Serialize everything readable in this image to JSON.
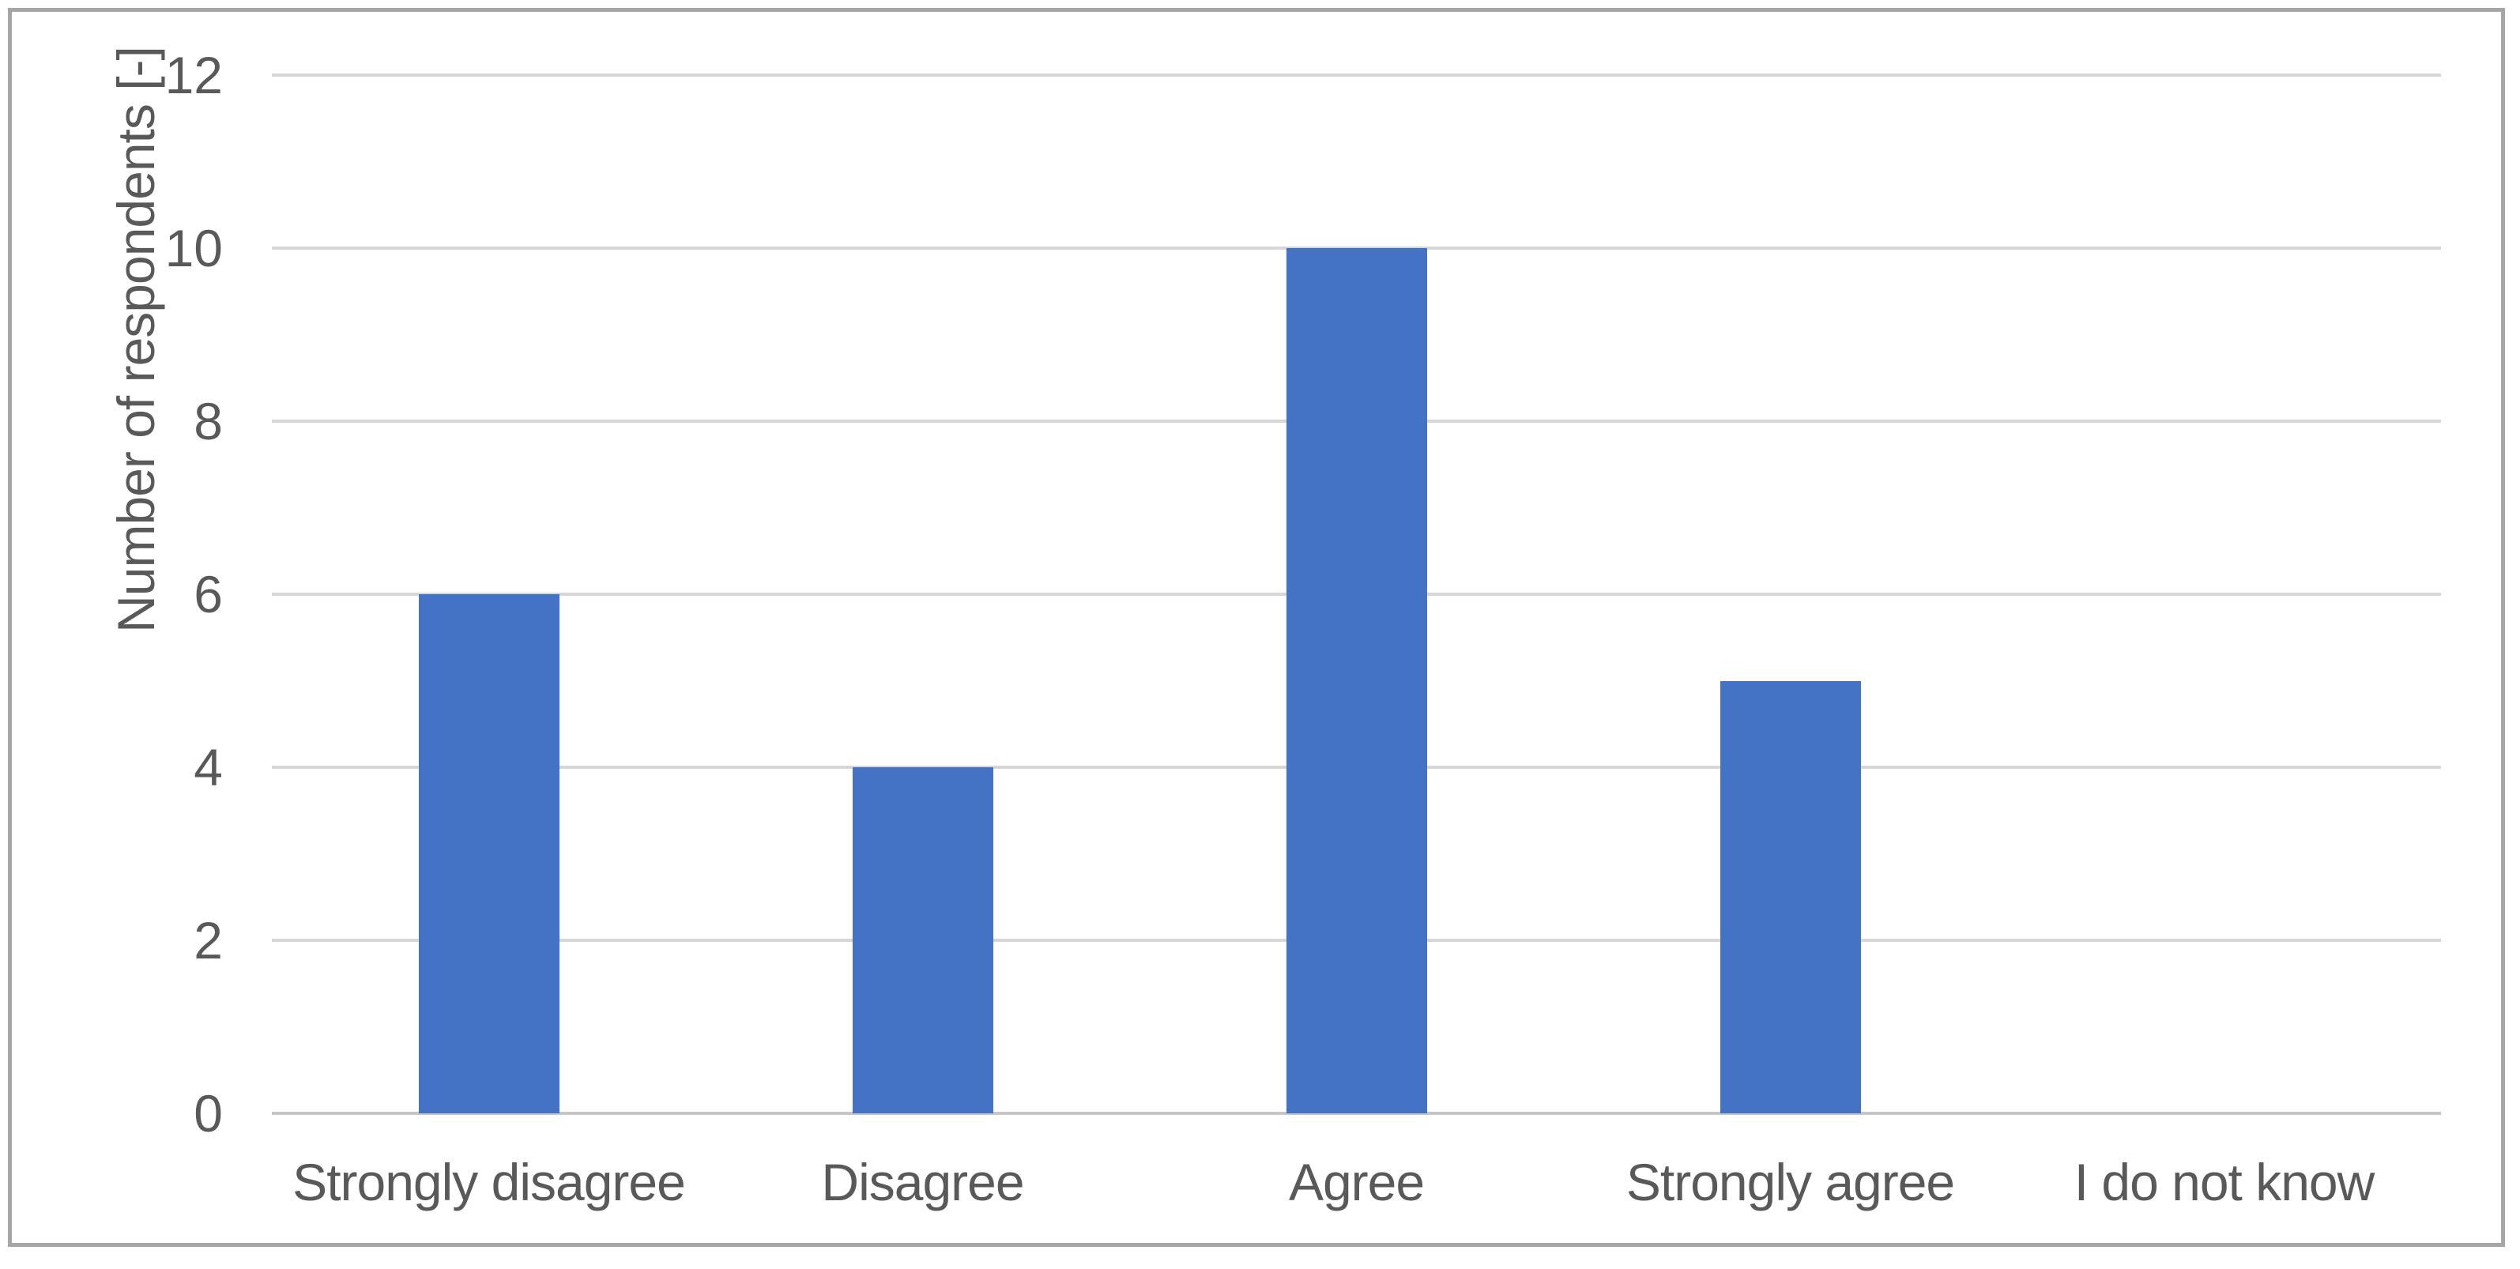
{
  "chart_data": {
    "type": "bar",
    "title": "",
    "categories": [
      "Strongly disagree",
      "Disagree",
      "Agree",
      "Strongly agree",
      "I do not know"
    ],
    "values": [
      6,
      4,
      10,
      5,
      0
    ],
    "xlabel": "",
    "ylabel": "Number of respondents [-]",
    "ylim": [
      0,
      12
    ],
    "yticks": [
      0,
      2,
      4,
      6,
      8,
      10,
      12
    ],
    "grid": "horizontal gridlines on",
    "legend_position": "none",
    "colors": {
      "bar": "#4472C4",
      "gridline": "#D6D6D6",
      "axis_line": "#C6C6C6",
      "text": "#595959",
      "frame_border": "#A6A6A6",
      "background": "#FFFFFF"
    }
  }
}
